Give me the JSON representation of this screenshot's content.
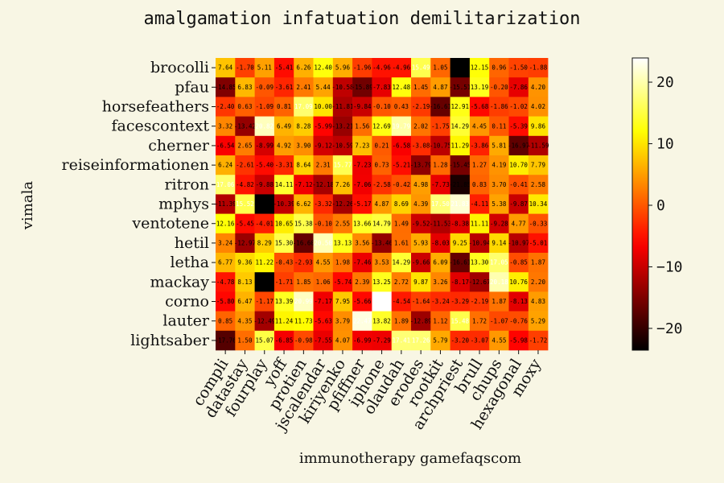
{
  "chart_data": {
    "type": "heatmap",
    "title": "amalgamation infatuation demilitarization",
    "xlabel": "immunotherapy gamefaqscom",
    "ylabel": "vimala",
    "x_categories": [
      "compli",
      "datastay",
      "fourplay",
      "yoff",
      "protien",
      "jscalendar",
      "kiriyenko",
      "pfiffner",
      "iphone",
      "olaudah",
      "erodes",
      "rootkit",
      "archpriest",
      "brull",
      "chups",
      "hexagonal",
      "moxy"
    ],
    "y_categories": [
      "brocolli",
      "pfau",
      "horsefeathers",
      "facescontext",
      "cherner",
      "reiseinformationen",
      "ritron",
      "mphys",
      "ventotene",
      "hetil",
      "letha",
      "mackay",
      "corno",
      "lauter",
      "lightsaber"
    ],
    "values": [
      [
        7.64,
        -1.7,
        5.11,
        -5.41,
        6.26,
        12.4,
        5.96,
        -1.96,
        -4.96,
        -4.96,
        15.49,
        1.05,
        -23.54,
        12.15,
        0.96,
        -1.5,
        -1.88
      ],
      [
        -14.85,
        6.83,
        -0.09,
        -3.61,
        2.41,
        5.44,
        -10.58,
        -15.89,
        -7.83,
        12.48,
        1.45,
        4.87,
        -15.51,
        13.19,
        -0.2,
        -7.86,
        4.2
      ],
      [
        -2.4,
        0.63,
        -1.09,
        0.81,
        17.09,
        10.0,
        -11.81,
        -9.84,
        -0.1,
        0.43,
        -2.19,
        -16.61,
        12.91,
        -5.68,
        -1.86,
        -1.02,
        4.02
      ],
      [
        3.32,
        -13.42,
        20.82,
        6.49,
        8.28,
        -5.99,
        -13.21,
        1.56,
        12.69,
        19.79,
        2.02,
        -1.75,
        14.29,
        4.45,
        0.11,
        -5.39,
        9.86
      ],
      [
        -6.54,
        2.65,
        -8.99,
        4.92,
        3.9,
        -9.12,
        -10.59,
        7.23,
        0.21,
        -6.58,
        -3.08,
        -10.75,
        11.29,
        -3.86,
        5.81,
        -16.97,
        -11.59
      ],
      [
        6.24,
        -2.61,
        -5.4,
        -3.31,
        8.64,
        2.31,
        15.77,
        -7.23,
        0.73,
        -5.21,
        -13.79,
        1.28,
        -15.45,
        1.27,
        4.19,
        10.7,
        7.79
      ],
      [
        17.06,
        -4.82,
        -9.88,
        14.11,
        -7.12,
        -12.18,
        7.26,
        -7.06,
        -2.58,
        -0.42,
        4.98,
        -7.73,
        -21.85,
        0.83,
        3.7,
        -0.41,
        2.58
      ],
      [
        -11.39,
        15.52,
        -24.35,
        -10.39,
        6.62,
        -3.32,
        -12.26,
        -5.17,
        4.87,
        8.69,
        4.39,
        17.5,
        21.83,
        -4.11,
        5.38,
        -9.87,
        10.34
      ],
      [
        12.16,
        -5.45,
        -4.01,
        10.65,
        15.38,
        -0.1,
        2.55,
        13.66,
        14.79,
        1.49,
        -9.52,
        -11.53,
        -8.38,
        11.11,
        -9.28,
        4.77,
        -0.33
      ],
      [
        3.24,
        -12.97,
        8.29,
        15.3,
        -16.6,
        20.5,
        13.13,
        3.56,
        -13.46,
        1.61,
        5.93,
        -8.03,
        9.25,
        -10.94,
        9.14,
        -10.97,
        -5.01
      ],
      [
        6.77,
        9.36,
        11.22,
        -0.43,
        -2.93,
        4.55,
        1.98,
        -7.46,
        3.53,
        14.29,
        -9.66,
        6.09,
        -16.61,
        13.3,
        17.05,
        -0.85,
        1.87
      ],
      [
        -4.78,
        8.13,
        -24.1,
        -1.71,
        1.85,
        1.06,
        -5.74,
        2.39,
        13.25,
        2.72,
        9.87,
        3.26,
        -8.17,
        -12.67,
        20.18,
        10.76,
        2.2
      ],
      [
        -5.8,
        6.47,
        -1.17,
        13.39,
        20.99,
        -7.17,
        7.95,
        -5.66,
        23.93,
        -4.54,
        -1.64,
        -3.24,
        -3.29,
        -2.19,
        1.87,
        -8.13,
        4.83
      ],
      [
        0.85,
        4.35,
        -12.49,
        11.24,
        11.73,
        -5.63,
        3.79,
        22.47,
        13.82,
        1.89,
        -12.89,
        1.12,
        15.48,
        1.72,
        -1.07,
        -0.76,
        5.29
      ],
      [
        -17.76,
        1.5,
        15.07,
        -6.85,
        -0.98,
        -7.55,
        4.07,
        -6.99,
        -7.29,
        17.41,
        17.26,
        5.79,
        -3.2,
        -3.07,
        4.55,
        -5.98,
        -1.72
      ]
    ],
    "vmin": -23.54,
    "vmax": 23.93,
    "colormap": "hot",
    "colorbar_ticks": [
      20,
      10,
      0,
      -10,
      -20
    ],
    "colorbar_tick_labels": [
      "20",
      "10",
      "0",
      "−10",
      "−20"
    ],
    "background": "#f8f6e4"
  }
}
